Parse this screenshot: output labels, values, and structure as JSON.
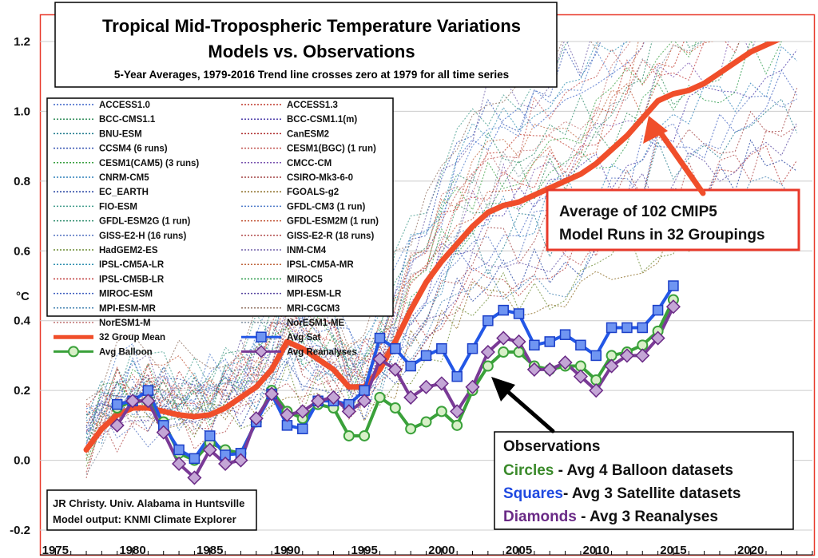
{
  "chart_data": {
    "type": "line",
    "title": "Tropical Mid-Tropospheric Temperature Variations",
    "subtitle": "Models vs. Observations",
    "subtitle2": "5-Year Averages, 1979-2016 Trend line crosses zero at 1979 for all time series",
    "ylabel": "°C",
    "xlim": [
      1974,
      2024
    ],
    "ylim": [
      -0.2,
      1.2
    ],
    "x_ticks": [
      1975,
      1980,
      1985,
      1990,
      1995,
      2000,
      2005,
      2010,
      2015,
      2020
    ],
    "x_tick_labels": [
      "1975",
      "1980",
      "1985",
      "1990",
      "1995",
      "2000",
      "2005",
      "2010",
      "2015",
      "2020"
    ],
    "y_ticks": [
      -0.2,
      0.0,
      0.2,
      0.4,
      0.6,
      0.8,
      1.0,
      1.2
    ],
    "y_tick_labels": [
      "-0.2",
      "0.0",
      "0.2",
      "0.4",
      "0.6",
      "0.8",
      "1.0",
      "1.2"
    ],
    "grid": true,
    "model_names": [
      "ACCESS1.0",
      "ACCESS1.3",
      "BCC-CMS1.1",
      "BCC-CSM1.1(m)",
      "BNU-ESM",
      "CanESM2",
      "CCSM4 (6 runs)",
      "CESM1(BGC) (1 run)",
      "CESM1(CAM5) (3 runs)",
      "CMCC-CM",
      "CNRM-CM5",
      "CSIRO-Mk3-6-0",
      "EC_EARTH",
      "FGOALS-g2",
      "FIO-ESM",
      "GFDL-CM3 (1 run)",
      "GFDL-ESM2G (1 run)",
      "GFDL-ESM2M (1 run)",
      "GISS-E2-H (16 runs)",
      "GISS-E2-R (18 runs)",
      "HadGEM2-ES",
      "INM-CM4",
      "IPSL-CM5A-LR",
      "IPSL-CM5A-MR",
      "IPSL-CM5B-LR",
      "MIROC5",
      "MIROC-ESM",
      "MPI-ESM-LR",
      "MPI-ESM-MR",
      "MRI-CGCM3",
      "NorESM1-M",
      "NorESM1-ME"
    ],
    "model_colors": [
      "#3a62c8",
      "#c0392b",
      "#2e8b57",
      "#4b3ba8",
      "#1f7a8c",
      "#b03030",
      "#2f4fb0",
      "#c0504d",
      "#3aa040",
      "#7a55b0",
      "#2b7fb8",
      "#a04040",
      "#1a3a9c",
      "#8a6a20",
      "#3d9a8a",
      "#4a78c8",
      "#2a8a6a",
      "#c05030",
      "#5070c0",
      "#b04848",
      "#6a8a30",
      "#7060a8",
      "#3090b0",
      "#c06840",
      "#c03a3a",
      "#2a9a4a",
      "#4060c0",
      "#5a48a0",
      "#4080b0",
      "#907060",
      "#c07070",
      "#8090a0"
    ],
    "series": [
      {
        "name": "32 Group Mean",
        "color": "#f04e2a",
        "x": [
          1977,
          1978,
          1979,
          1980,
          1981,
          1982,
          1983,
          1984,
          1985,
          1986,
          1987,
          1988,
          1989,
          1990,
          1991,
          1992,
          1993,
          1994,
          1995,
          1996,
          1997,
          1998,
          1999,
          2000,
          2001,
          2002,
          2003,
          2004,
          2005,
          2006,
          2007,
          2008,
          2009,
          2010,
          2011,
          2012,
          2013,
          2014,
          2015,
          2016,
          2017,
          2018,
          2019,
          2020,
          2021,
          2022
        ],
        "values": [
          0.03,
          0.09,
          0.13,
          0.15,
          0.15,
          0.14,
          0.13,
          0.125,
          0.13,
          0.15,
          0.18,
          0.21,
          0.26,
          0.34,
          0.32,
          0.29,
          0.26,
          0.21,
          0.21,
          0.26,
          0.34,
          0.43,
          0.51,
          0.57,
          0.62,
          0.67,
          0.71,
          0.73,
          0.74,
          0.76,
          0.78,
          0.8,
          0.82,
          0.85,
          0.89,
          0.93,
          0.98,
          1.03,
          1.05,
          1.06,
          1.08,
          1.11,
          1.14,
          1.17,
          1.19,
          1.21
        ]
      },
      {
        "name": "Avg Sat",
        "color": "#2357e6",
        "x": [
          1979,
          1980,
          1981,
          1982,
          1983,
          1984,
          1985,
          1986,
          1987,
          1988,
          1989,
          1990,
          1991,
          1992,
          1993,
          1994,
          1995,
          1996,
          1997,
          1998,
          1999,
          2000,
          2001,
          2002,
          2003,
          2004,
          2005,
          2006,
          2007,
          2008,
          2009,
          2010,
          2011,
          2012,
          2013,
          2014,
          2015
        ],
        "values": [
          0.16,
          0.17,
          0.2,
          0.1,
          0.03,
          0.005,
          0.07,
          0.015,
          0.02,
          0.11,
          0.19,
          0.1,
          0.09,
          0.17,
          0.17,
          0.16,
          0.2,
          0.35,
          0.32,
          0.27,
          0.3,
          0.32,
          0.24,
          0.32,
          0.4,
          0.43,
          0.42,
          0.33,
          0.34,
          0.36,
          0.33,
          0.3,
          0.38,
          0.38,
          0.38,
          0.43,
          0.5
        ]
      },
      {
        "name": "Avg Balloon",
        "color": "#3aa13a",
        "x": [
          1979,
          1980,
          1981,
          1982,
          1983,
          1984,
          1985,
          1986,
          1987,
          1988,
          1989,
          1990,
          1991,
          1992,
          1993,
          1994,
          1995,
          1996,
          1997,
          1998,
          1999,
          2000,
          2001,
          2002,
          2003,
          2004,
          2005,
          2006,
          2007,
          2008,
          2009,
          2010,
          2011,
          2012,
          2013,
          2014,
          2015
        ],
        "values": [
          0.15,
          0.17,
          0.17,
          0.11,
          0.02,
          0.0,
          0.05,
          0.03,
          0.02,
          0.11,
          0.2,
          0.14,
          0.12,
          0.16,
          0.15,
          0.07,
          0.07,
          0.18,
          0.15,
          0.09,
          0.11,
          0.14,
          0.1,
          0.2,
          0.27,
          0.31,
          0.31,
          0.27,
          0.26,
          0.27,
          0.27,
          0.23,
          0.3,
          0.31,
          0.33,
          0.37,
          0.46
        ]
      },
      {
        "name": "Avg Reanalyses",
        "color": "#7a3a96",
        "x": [
          1979,
          1980,
          1981,
          1982,
          1983,
          1984,
          1985,
          1986,
          1987,
          1988,
          1989,
          1990,
          1991,
          1992,
          1993,
          1994,
          1995,
          1996,
          1997,
          1998,
          1999,
          2000,
          2001,
          2002,
          2003,
          2004,
          2005,
          2006,
          2007,
          2008,
          2009,
          2010,
          2011,
          2012,
          2013,
          2014,
          2015
        ],
        "values": [
          0.1,
          0.17,
          0.17,
          0.08,
          -0.01,
          -0.05,
          0.03,
          -0.01,
          0.0,
          0.12,
          0.19,
          0.13,
          0.14,
          0.17,
          0.18,
          0.14,
          0.17,
          0.29,
          0.26,
          0.18,
          0.21,
          0.22,
          0.14,
          0.21,
          0.31,
          0.35,
          0.34,
          0.26,
          0.26,
          0.28,
          0.24,
          0.2,
          0.27,
          0.3,
          0.3,
          0.35,
          0.44
        ]
      }
    ],
    "legend": {
      "position": "top-left",
      "mean_label": "32 Group Mean",
      "sat_label": "Avg Sat",
      "balloon_label": "Avg Balloon",
      "reanalyses_label": "Avg Reanalyses"
    },
    "annotations": {
      "model_avg_line1": "Average of 102 CMIP5",
      "model_avg_line2": "Model Runs in 32 Groupings",
      "obs_title": "Observations",
      "obs_circles_key": "Circles",
      "obs_circles_text": " - Avg 4 Balloon datasets",
      "obs_squares_key": "Squares",
      "obs_squares_text": "- Avg 3 Satellite datasets",
      "obs_diamonds_key": "Diamonds",
      "obs_diamonds_text": " - Avg 3 Reanalyses",
      "credit_line1": "JR Christy. Univ. Alabama in Huntsville",
      "credit_line2": "Model output: KNMI Climate Explorer"
    },
    "colors": {
      "frame": "#e8392a",
      "grid": "#cccccc",
      "circles": "#3a8a2a",
      "squares": "#1f49e0",
      "diamonds": "#6a2a86",
      "arrow_model": "#f04e2a",
      "arrow_obs": "#000000"
    }
  }
}
